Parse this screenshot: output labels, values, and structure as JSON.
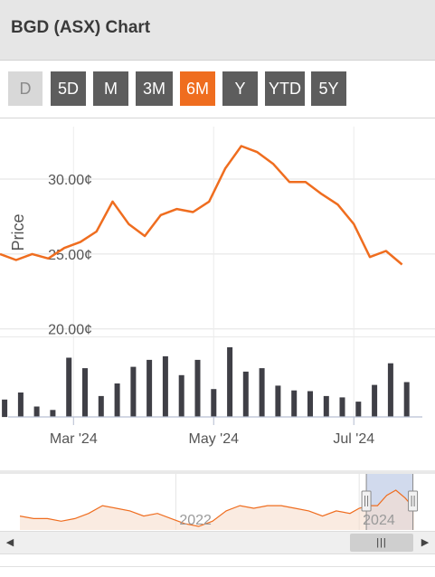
{
  "header": {
    "title": "BGD (ASX) Chart"
  },
  "range_buttons": {
    "d": "D",
    "d5": "5D",
    "m": "M",
    "m3": "3M",
    "m6": "6M",
    "y": "Y",
    "ytd": "YTD",
    "y5": "5Y",
    "selected": "6M"
  },
  "colors": {
    "price_line": "#ef6d1f",
    "volume_bar": "#3f3f46",
    "active_button": "#ef6d1f",
    "button": "#5d5d5d",
    "navigator_selection": "#c9d3ea"
  },
  "chart_data": [
    {
      "type": "line",
      "title": "",
      "ylabel": "Price",
      "yticks": [
        "30.00¢",
        "25.00¢",
        "20.00¢"
      ],
      "ytick_values": [
        30,
        25,
        20
      ],
      "ylim": [
        19.5,
        33.5
      ],
      "xtick_labels": [
        "Mar '24",
        "May '24",
        "Jul '24"
      ],
      "xtick_dates": [
        "2024-03-01",
        "2024-05-01",
        "2024-07-01"
      ],
      "xlim": [
        "2024-01-29",
        "2024-08-01"
      ],
      "grid": true,
      "series": [
        {
          "x": [
            "2024-01-29",
            "2024-02-05",
            "2024-02-12",
            "2024-02-19",
            "2024-02-26",
            "2024-03-04",
            "2024-03-11",
            "2024-03-18",
            "2024-03-25",
            "2024-04-01",
            "2024-04-08",
            "2024-04-15",
            "2024-04-22",
            "2024-04-29",
            "2024-05-06",
            "2024-05-13",
            "2024-05-20",
            "2024-05-27",
            "2024-06-03",
            "2024-06-10",
            "2024-06-17",
            "2024-06-24",
            "2024-07-01",
            "2024-07-08",
            "2024-07-15",
            "2024-07-22"
          ],
          "values": [
            25.0,
            24.6,
            25.0,
            24.7,
            25.4,
            25.8,
            26.5,
            28.5,
            27.0,
            26.2,
            27.6,
            28.0,
            27.8,
            28.5,
            30.7,
            32.2,
            31.8,
            31.0,
            29.8,
            29.8,
            29.0,
            28.3,
            27.0,
            24.8,
            25.2,
            24.3
          ]
        }
      ]
    },
    {
      "type": "bar",
      "title": "",
      "xlim": [
        "2024-01-29",
        "2024-08-01"
      ],
      "series": [
        {
          "x": [
            "2024-01-31",
            "2024-02-07",
            "2024-02-14",
            "2024-02-21",
            "2024-02-28",
            "2024-03-06",
            "2024-03-13",
            "2024-03-20",
            "2024-03-27",
            "2024-04-03",
            "2024-04-10",
            "2024-04-17",
            "2024-04-24",
            "2024-05-01",
            "2024-05-08",
            "2024-05-15",
            "2024-05-22",
            "2024-05-29",
            "2024-06-05",
            "2024-06-12",
            "2024-06-19",
            "2024-06-26",
            "2024-07-03",
            "2024-07-10",
            "2024-07-17",
            "2024-07-24"
          ],
          "values": [
            2.5,
            3.5,
            1.5,
            1.0,
            8.5,
            7.0,
            3.0,
            4.8,
            7.2,
            8.2,
            8.7,
            6.0,
            8.2,
            4.0,
            10.0,
            6.5,
            7.0,
            4.5,
            3.8,
            3.7,
            3.0,
            2.8,
            2.2,
            4.6,
            7.7,
            5.0
          ]
        }
      ]
    },
    {
      "type": "area",
      "title": "navigator",
      "xtick_labels": [
        "2022",
        "2024"
      ],
      "xtick_years": [
        2022,
        2024
      ],
      "xlim": [
        2020.3,
        2024.6
      ],
      "selection": [
        "2024-01-29",
        "2024-08-01"
      ],
      "series": [
        {
          "x": [
            2020.3,
            2020.45,
            2020.6,
            2020.75,
            2020.9,
            2021.05,
            2021.2,
            2021.35,
            2021.5,
            2021.65,
            2021.8,
            2021.95,
            2022.1,
            2022.25,
            2022.4,
            2022.55,
            2022.7,
            2022.85,
            2023.0,
            2023.15,
            2023.3,
            2023.45,
            2023.6,
            2023.75,
            2023.9,
            2024.0,
            2024.1,
            2024.2,
            2024.3,
            2024.4,
            2024.5,
            2024.6
          ],
          "values": [
            22,
            21,
            21,
            20,
            21,
            23,
            26,
            25,
            24,
            22,
            23,
            21,
            19,
            18,
            20,
            24,
            26,
            25,
            26,
            26,
            25,
            24,
            22,
            24,
            23,
            25,
            26,
            26,
            30,
            32,
            29,
            25
          ]
        }
      ]
    }
  ],
  "scrollbar": {
    "left_arrow": "◀",
    "right_arrow": "▶",
    "thumb_grip": "|||"
  }
}
